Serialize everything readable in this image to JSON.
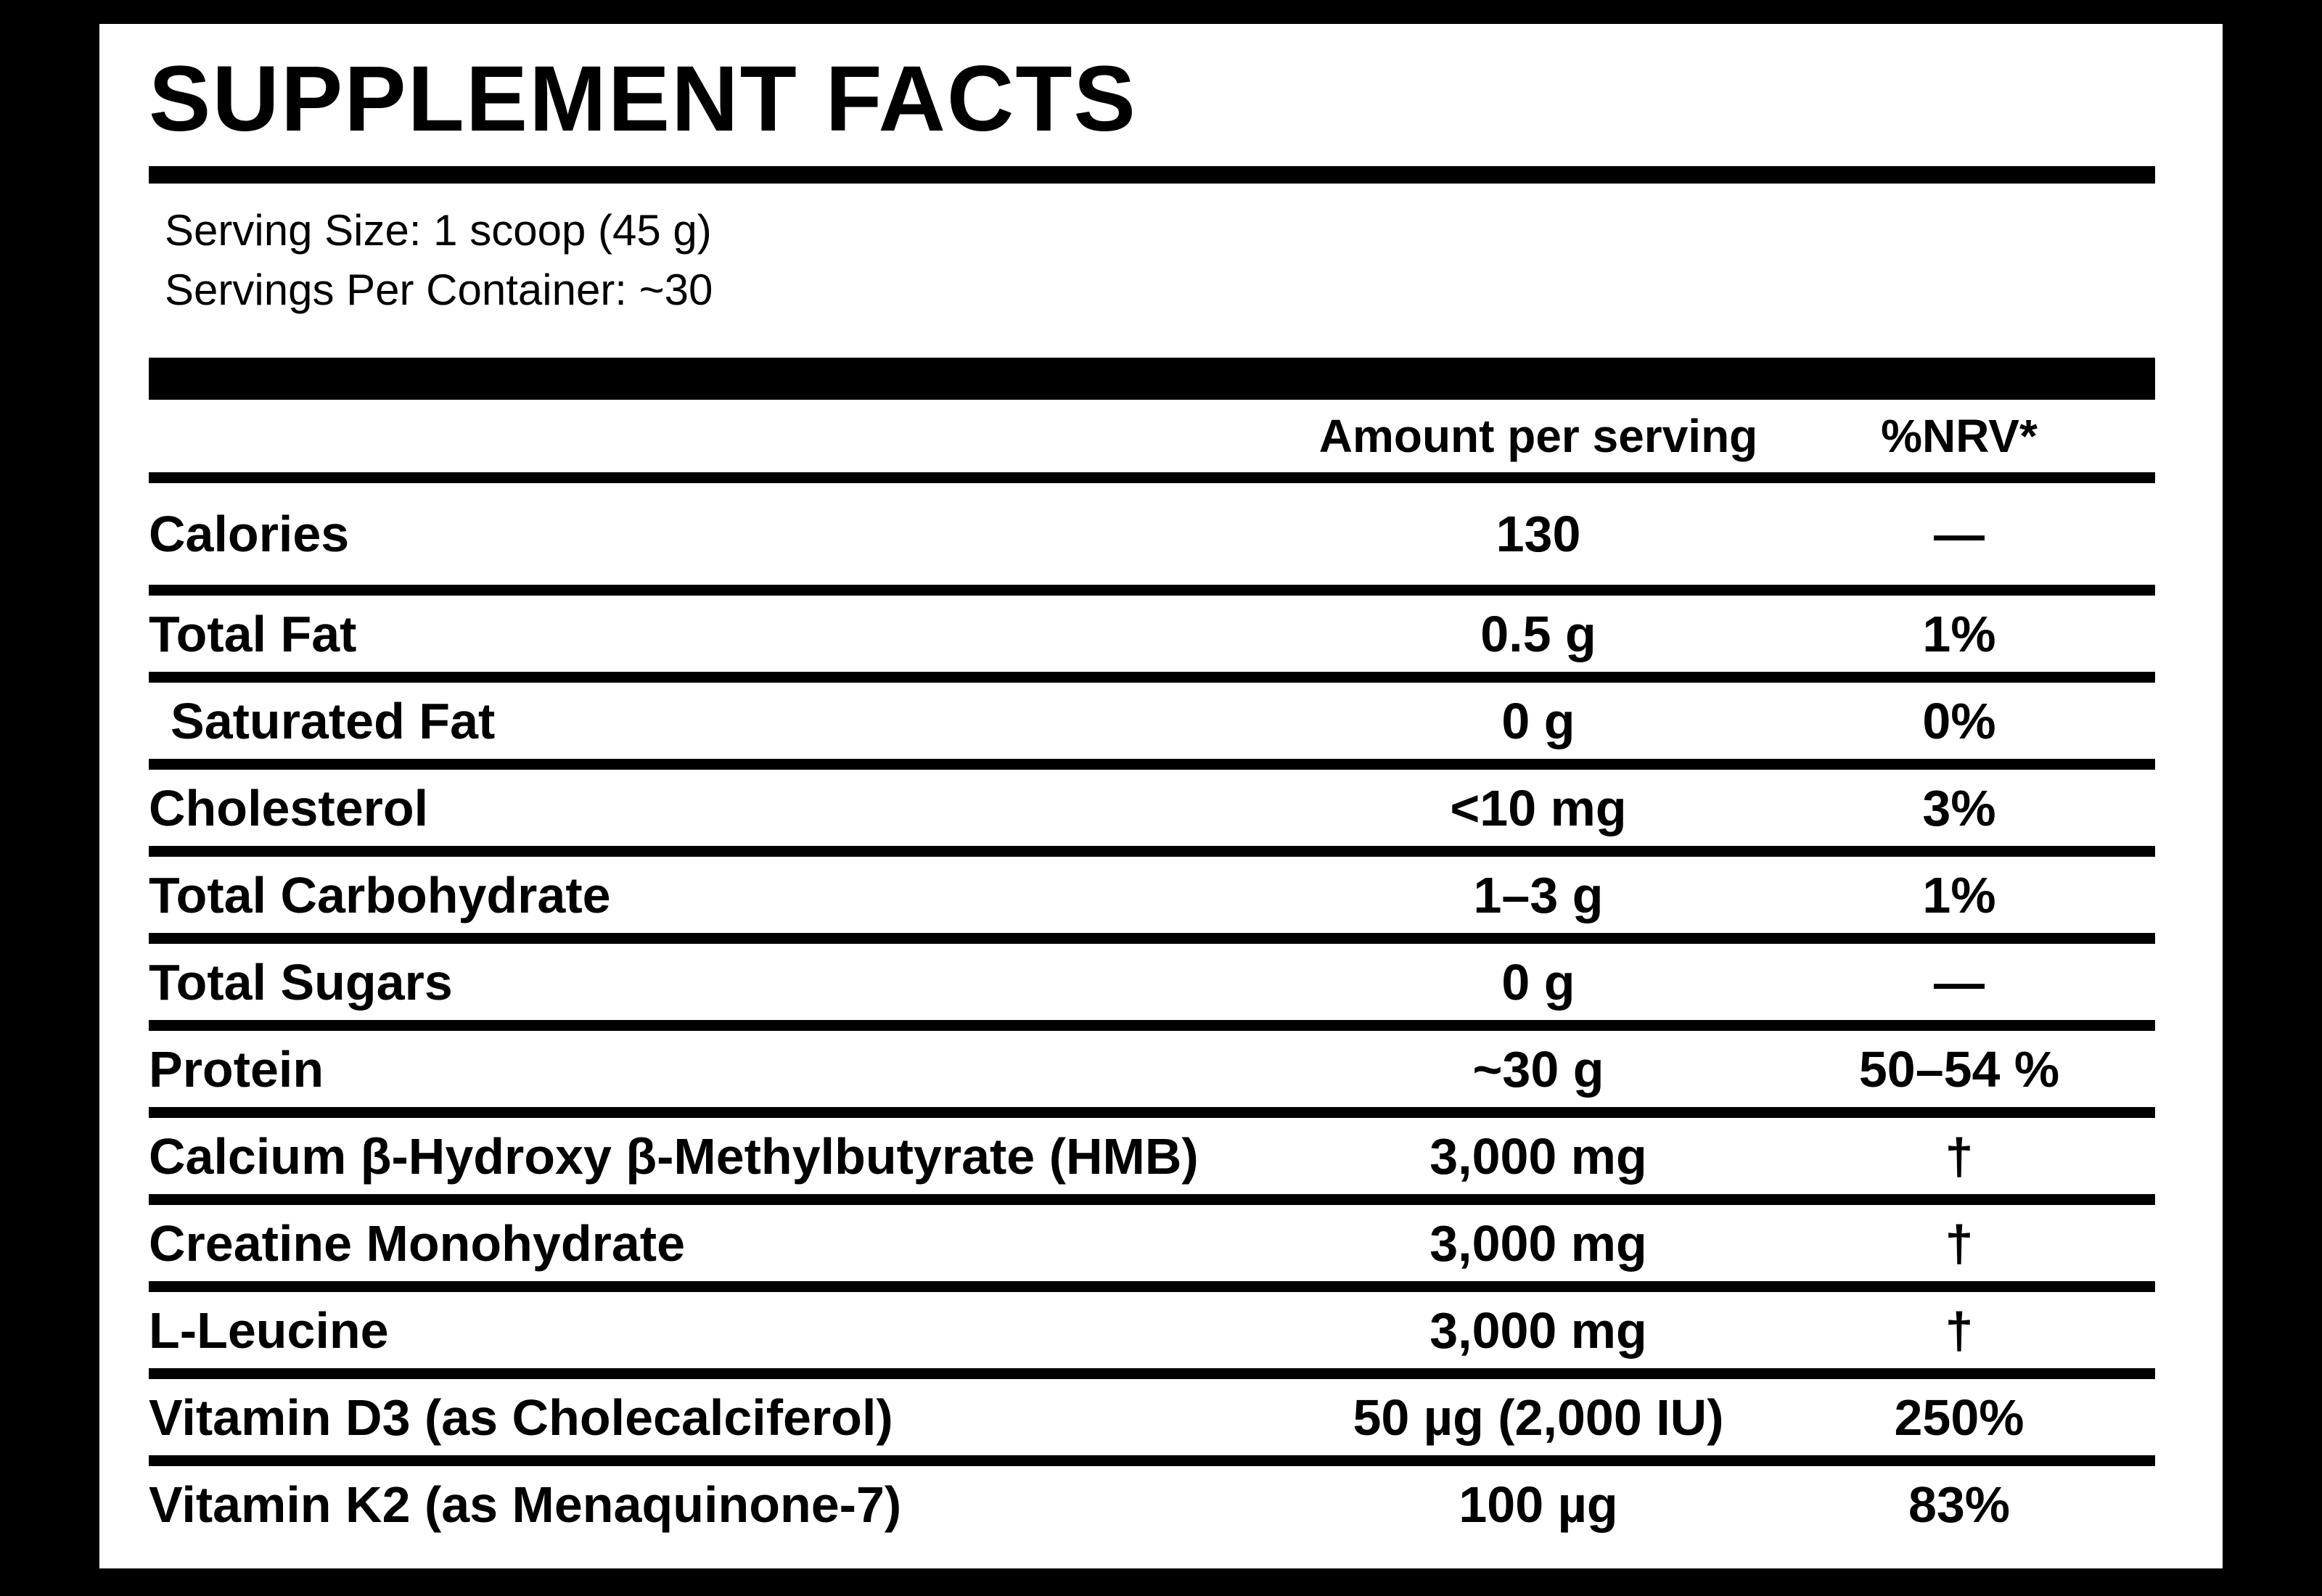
{
  "label": {
    "title": "SUPPLEMENT FACTS",
    "serving_size": "Serving Size: 1 scoop (45 g)",
    "servings_per_container": "Servings Per Container: ~30",
    "columns": {
      "amount": "Amount per serving",
      "nrv": "%NRV*"
    },
    "rows": [
      {
        "name": "Calories",
        "amount": "130",
        "nrv": "—",
        "indent": false
      },
      {
        "name": "Total Fat",
        "amount": "0.5 g",
        "nrv": "1%",
        "indent": false
      },
      {
        "name": "Saturated Fat",
        "amount": "0 g",
        "nrv": "0%",
        "indent": true
      },
      {
        "name": "Cholesterol",
        "amount": "<10 mg",
        "nrv": "3%",
        "indent": false
      },
      {
        "name": "Total Carbohydrate",
        "amount": "1–3 g",
        "nrv": "1%",
        "indent": false
      },
      {
        "name": "Total Sugars",
        "amount": "0 g",
        "nrv": "—",
        "indent": false
      },
      {
        "name": "Protein",
        "amount": "~30 g",
        "nrv": "50–54 %",
        "indent": false
      },
      {
        "name": "Calcium β-Hydroxy β-Methylbutyrate (HMB)",
        "amount": "3,000 mg",
        "nrv": "†",
        "indent": false
      },
      {
        "name": "Creatine Monohydrate",
        "amount": "3,000 mg",
        "nrv": "†",
        "indent": false
      },
      {
        "name": "L-Leucine",
        "amount": "3,000 mg",
        "nrv": "†",
        "indent": false
      },
      {
        "name": "Vitamin D3 (as Cholecalciferol)",
        "amount": "50 µg (2,000 IU)",
        "nrv": "250%",
        "indent": false
      },
      {
        "name": "Vitamin K2 (as Menaquinone-7)",
        "amount": "100 µg",
        "nrv": "83%",
        "indent": false
      }
    ],
    "colors": {
      "background": "#000000",
      "panel": "#ffffff",
      "text": "#000000"
    }
  }
}
